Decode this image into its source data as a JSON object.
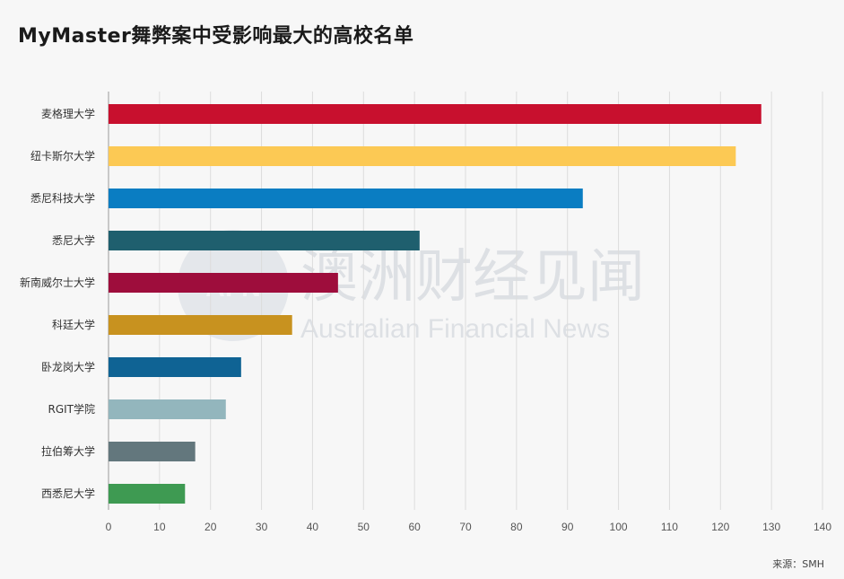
{
  "title": "MyMaster舞弊案中受影响最大的高校名单",
  "source": "来源：SMH",
  "watermark": {
    "cn": "澳洲财经见闻",
    "en": "Australian Financial News"
  },
  "chart_data": {
    "type": "bar",
    "orientation": "horizontal",
    "title": "MyMaster舞弊案中受影响最大的高校名单",
    "xlabel": "",
    "ylabel": "",
    "xlim": [
      0,
      140
    ],
    "ticks": [
      0,
      10,
      20,
      30,
      40,
      50,
      60,
      70,
      80,
      90,
      100,
      110,
      120,
      130,
      140
    ],
    "grid": true,
    "categories": [
      "麦格理大学",
      "纽卡斯尔大学",
      "悉尼科技大学",
      "悉尼大学",
      "新南威尔士大学",
      "科廷大学",
      "卧龙岗大学",
      "RGIT学院",
      "拉伯筹大学",
      "西悉尼大学"
    ],
    "values": [
      128,
      123,
      93,
      61,
      45,
      36,
      26,
      23,
      17,
      15
    ],
    "colors": [
      "#c8102e",
      "#fcc954",
      "#0a7dc2",
      "#1f5f6e",
      "#9e0d3c",
      "#c8921f",
      "#0f6394",
      "#93b6bd",
      "#63777d",
      "#3e9a52"
    ]
  }
}
